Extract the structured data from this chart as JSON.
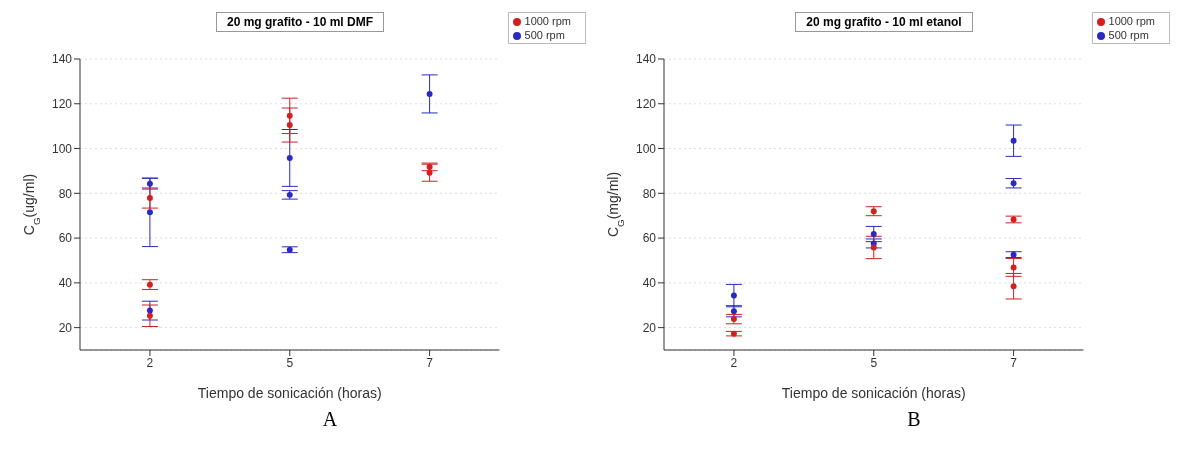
{
  "chart_data": [
    {
      "type": "scatter",
      "title": "20 mg grafito - 10 ml DMF",
      "xlabel": "Tiempo de sonicación (horas)",
      "ylabel": "C$_{G}$(ug/ml)",
      "categories": [
        "2",
        "5",
        "7"
      ],
      "ylim": [
        10,
        140
      ],
      "yticks": [
        20,
        40,
        60,
        80,
        100,
        120,
        140
      ],
      "grid": "y",
      "legend": "top right",
      "marker": "circle",
      "annotations": [
        "A"
      ],
      "series": [
        {
          "name": "500 rpm",
          "color": "#2a2ac0",
          "x": [
            "2",
            "2",
            "2",
            "5",
            "5",
            "5",
            "7",
            "7"
          ],
          "values": [
            84.3,
            71.5,
            27.6,
            95.8,
            79.3,
            54.8,
            124.4,
            null
          ],
          "errors": [
            2.4,
            15.3,
            4.2,
            12.7,
            1.9,
            1.3,
            8.5,
            null
          ]
        },
        {
          "name": "1000 rpm",
          "color": "#d02020",
          "x": [
            "2",
            "2",
            "2",
            "5",
            "5",
            "7",
            "7"
          ],
          "values": [
            77.9,
            39.2,
            25.3,
            114.6,
            110.5,
            91.8,
            89.2
          ],
          "errors": [
            4.5,
            2.2,
            4.8,
            7.9,
            7.6,
            1.7,
            3.8
          ]
        }
      ]
    },
    {
      "type": "scatter",
      "title": "20 mg grafito - 10 ml etanol",
      "xlabel": "Tiempo de sonicación (horas)",
      "ylabel": "C$_{G}$(mg/ml)",
      "categories": [
        "2",
        "5",
        "7"
      ],
      "ylim": [
        10,
        140
      ],
      "yticks": [
        20,
        40,
        60,
        80,
        100,
        120,
        140
      ],
      "grid": "y",
      "legend": "top right",
      "marker": "circle",
      "annotations": [
        "B"
      ],
      "series": [
        {
          "name": "500 rpm",
          "color": "#2a2ac0",
          "x": [
            "2",
            "2",
            "5",
            "5",
            "7",
            "7",
            "7"
          ],
          "values": [
            34.3,
            27.3,
            61.8,
            57.6,
            103.5,
            84.5,
            52.6
          ],
          "errors": [
            5,
            2.5,
            3.4,
            2,
            7,
            2.1,
            1.3
          ]
        },
        {
          "name": "1000 rpm",
          "color": "#d02020",
          "x": [
            "2",
            "2",
            "5",
            "5",
            "7",
            "7",
            "7"
          ],
          "values": [
            23.8,
            17.3,
            72,
            55.8,
            68.3,
            46.9,
            38.5
          ],
          "errors": [
            2.1,
            1,
            2,
            5,
            1.5,
            4,
            5.7
          ]
        }
      ]
    }
  ]
}
